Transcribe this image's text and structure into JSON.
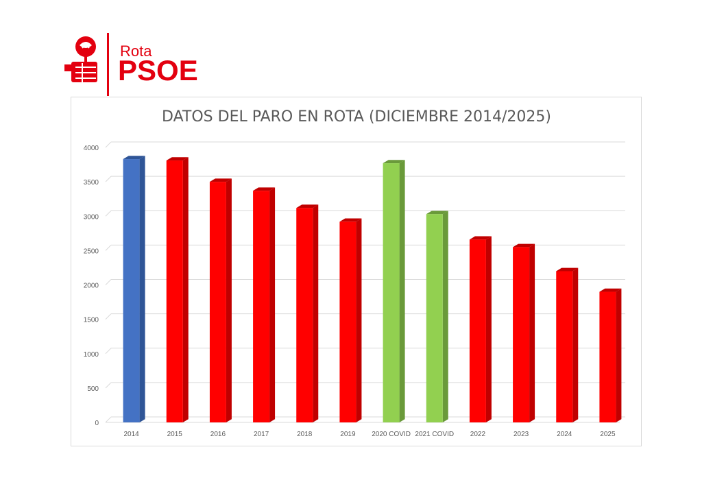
{
  "logo": {
    "line1": "Rota",
    "line2": "PSOE",
    "brand_color": "#e3000f"
  },
  "chart_data": {
    "type": "bar",
    "title": "DATOS DEL PARO EN ROTA (DICIEMBRE 2014/2025)",
    "categories": [
      "2014",
      "2015",
      "2016",
      "2017",
      "2018",
      "2019",
      "2020 COVID",
      "2021 COVID",
      "2022",
      "2023",
      "2024",
      "2025"
    ],
    "values": [
      3830,
      3810,
      3500,
      3370,
      3120,
      2920,
      3770,
      3030,
      2660,
      2550,
      2200,
      1900
    ],
    "colors": [
      "#4472c4",
      "#ff0000",
      "#ff0000",
      "#ff0000",
      "#ff0000",
      "#ff0000",
      "#92d050",
      "#92d050",
      "#ff0000",
      "#ff0000",
      "#ff0000",
      "#ff0000"
    ],
    "side_colors": [
      "#2f5597",
      "#c00000",
      "#c00000",
      "#c00000",
      "#c00000",
      "#c00000",
      "#6a9a3a",
      "#6a9a3a",
      "#c00000",
      "#c00000",
      "#c00000",
      "#c00000"
    ],
    "yticks": [
      "0",
      "500",
      "1000",
      "1500",
      "2000",
      "2500",
      "3000",
      "3500",
      "4000"
    ],
    "ylim": [
      0,
      4000
    ],
    "xlabel": "",
    "ylabel": "",
    "grid": true,
    "legend": "none"
  }
}
